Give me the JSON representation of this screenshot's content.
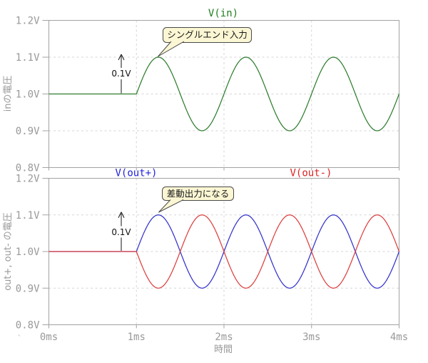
{
  "figure": {
    "stray_mark": "`",
    "colors": {
      "background": "#ffffff",
      "axis": "#a3a3a3",
      "grid": "#d6d6d6",
      "tick_text": "#999999",
      "green": "#2f7d2f",
      "blue": "#3434cc",
      "red": "#dd4040",
      "annotation": "#111111",
      "callout_fill": "#fbf6d3",
      "callout_border": "#4a4a4a"
    }
  },
  "top_panel": {
    "title": "V(in)",
    "ylabel": "inの電圧",
    "callout": "シングルエンド入力",
    "arrow_label": "0.1V"
  },
  "bottom_panel": {
    "legend": [
      {
        "label": "V(out+)",
        "color": "#2222dd"
      },
      {
        "label": "V(out-)",
        "color": "#dd2222"
      }
    ],
    "ylabel": "out+, out- の電圧",
    "callout": "差動出力になる",
    "arrow_label": "0.1V"
  },
  "xaxis": {
    "label": "時間",
    "ticks": [
      {
        "label": "0ms",
        "t": 0
      },
      {
        "label": "1ms",
        "t": 1
      },
      {
        "label": "2ms",
        "t": 2
      },
      {
        "label": "3ms",
        "t": 3
      },
      {
        "label": "4ms",
        "t": 4
      }
    ]
  },
  "chart_data": [
    {
      "type": "line",
      "panel": "top",
      "title": "V(in)",
      "xlabel": "時間",
      "ylabel": "inの電圧",
      "xlim_ms": [
        0,
        4
      ],
      "ylim_V": [
        0.8,
        1.2
      ],
      "grid": true,
      "yticks": [
        {
          "label": "1.2V",
          "v": 1.2
        },
        {
          "label": "1.1V",
          "v": 1.1
        },
        {
          "label": "1.0V",
          "v": 1.0
        },
        {
          "label": "0.9V",
          "v": 0.9
        },
        {
          "label": "0.8V",
          "v": 0.8
        }
      ],
      "series": [
        {
          "name": "V(in)",
          "color": "green",
          "baseline_V": 1.0,
          "amplitude_V": 0.1,
          "period_ms": 1.0,
          "sine_start_ms": 1.0,
          "x_ms": [
            0,
            0.25,
            0.5,
            0.75,
            1,
            1.25,
            1.5,
            1.75,
            2,
            2.25,
            2.5,
            2.75,
            3,
            3.25,
            3.5,
            3.75,
            4
          ],
          "y_V": [
            1,
            1,
            1,
            1,
            1,
            1.1,
            1,
            0.9,
            1,
            1.1,
            1,
            0.9,
            1,
            1.1,
            1,
            0.9,
            1
          ]
        }
      ],
      "annotations": [
        {
          "type": "callout",
          "text": "シングルエンド入力",
          "points_to": {
            "t_ms": 1.25,
            "v_V": 1.1
          }
        },
        {
          "type": "arrow",
          "text": "0.1V",
          "at_ms": 0.83,
          "from_V": 1.0,
          "to_V": 1.1
        }
      ]
    },
    {
      "type": "line",
      "panel": "bottom",
      "title": "",
      "xlabel": "時間",
      "ylabel": "out+, out- の電圧",
      "xlim_ms": [
        0,
        4
      ],
      "ylim_V": [
        0.8,
        1.2
      ],
      "grid": true,
      "yticks": [
        {
          "label": "1.2V",
          "v": 1.2
        },
        {
          "label": "1.1V",
          "v": 1.1
        },
        {
          "label": "1.0V",
          "v": 1.0
        },
        {
          "label": "0.9V",
          "v": 0.9
        },
        {
          "label": "0.8V",
          "v": 0.8
        }
      ],
      "series": [
        {
          "name": "V(out+)",
          "color": "blue",
          "baseline_V": 1.0,
          "amplitude_V": 0.1,
          "period_ms": 1.0,
          "sine_start_ms": 1.0,
          "x_ms": [
            0,
            0.25,
            0.5,
            0.75,
            1,
            1.25,
            1.5,
            1.75,
            2,
            2.25,
            2.5,
            2.75,
            3,
            3.25,
            3.5,
            3.75,
            4
          ],
          "y_V": [
            1,
            1,
            1,
            1,
            1,
            1.1,
            1,
            0.9,
            1,
            1.1,
            1,
            0.9,
            1,
            1.1,
            1,
            0.9,
            1
          ]
        },
        {
          "name": "V(out-)",
          "color": "red",
          "baseline_V": 1.0,
          "amplitude_V": -0.1,
          "period_ms": 1.0,
          "sine_start_ms": 1.0,
          "x_ms": [
            0,
            0.25,
            0.5,
            0.75,
            1,
            1.25,
            1.5,
            1.75,
            2,
            2.25,
            2.5,
            2.75,
            3,
            3.25,
            3.5,
            3.75,
            4
          ],
          "y_V": [
            1,
            1,
            1,
            1,
            1,
            0.9,
            1,
            1.1,
            1,
            0.9,
            1,
            1.1,
            1,
            0.9,
            1,
            1.1,
            1
          ]
        }
      ],
      "annotations": [
        {
          "type": "callout",
          "text": "差動出力になる",
          "points_to": {
            "t_ms": 1.25,
            "v_V": 1.1
          }
        },
        {
          "type": "arrow",
          "text": "0.1V",
          "at_ms": 0.83,
          "from_V": 1.0,
          "to_V": 1.1
        }
      ]
    }
  ]
}
